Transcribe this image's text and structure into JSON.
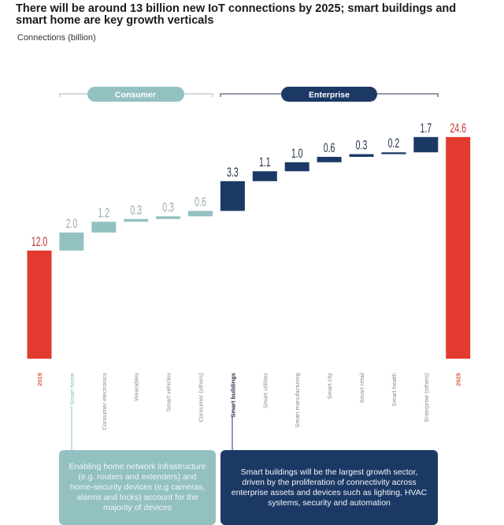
{
  "header": {
    "title": "There will be around 13 billion new IoT connections by 2025; smart buildings and smart home are key growth verticals",
    "subtitle": "Connections (billion)"
  },
  "groups": {
    "consumer_label": "Consumer",
    "enterprise_label": "Enterprise"
  },
  "colors": {
    "total": "#e23a2f",
    "consumer": "#93c1c2",
    "enterprise": "#1c3966",
    "total_label": "#c0352e",
    "consumer_label": "#9aa9ad",
    "enterprise_label": "#23324a"
  },
  "notes": {
    "consumer": "Enabling home network infrastructure (e.g. routers and extenders) and home-security devices (e.g cameras, alarms and locks) account for the majority of devices",
    "enterprise": "Smart buildings will be the largest growth sector, driven by the proliferation of connectivity across enterprise assets and devices such as lighting, HVAC systems, security and automation"
  },
  "chart_data": {
    "type": "bar",
    "subtype": "waterfall",
    "title": "There will be around 13 billion new IoT connections by 2025; smart buildings and smart home are key growth verticals",
    "ylabel": "Connections (billion)",
    "xlabel": "",
    "ylim": [
      0,
      26
    ],
    "grid": false,
    "categories": [
      "2019",
      "Smart home",
      "Consumer electronics",
      "Wearables",
      "Smart vehicles",
      "Consumer (others)",
      "Smart buildings",
      "Smart utilities",
      "Smart manufacturing",
      "Smart city",
      "Smart retail",
      "Smart health",
      "Enterprise (others)",
      "2025"
    ],
    "values": [
      12.0,
      2.0,
      1.2,
      0.3,
      0.3,
      0.6,
      3.3,
      1.1,
      1.0,
      0.6,
      0.3,
      0.2,
      1.7,
      24.6
    ],
    "labels": [
      "12.0",
      "2.0",
      "1.2",
      "0.3",
      "0.3",
      "0.6",
      "3.3",
      "1.1",
      "1.0",
      "0.6",
      "0.3",
      "0.2",
      "1.7",
      "24.6"
    ],
    "kinds": [
      "total",
      "consumer",
      "consumer",
      "consumer",
      "consumer",
      "consumer",
      "enterprise",
      "enterprise",
      "enterprise",
      "enterprise",
      "enterprise",
      "enterprise",
      "enterprise",
      "total"
    ],
    "highlighted": [
      "Smart home",
      "Smart buildings"
    ]
  }
}
